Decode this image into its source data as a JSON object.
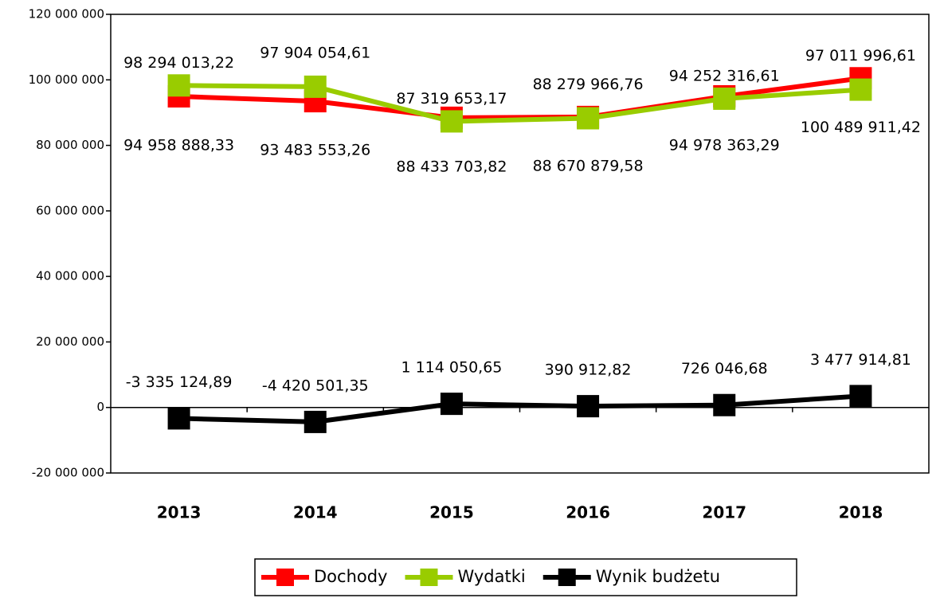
{
  "chart_data": {
    "type": "line",
    "categories": [
      "2013",
      "2014",
      "2015",
      "2016",
      "2017",
      "2018"
    ],
    "series": [
      {
        "name": "Dochody",
        "color": "#ff0000",
        "values": [
          94958888.33,
          93483553.26,
          88433703.82,
          88670879.58,
          94978363.29,
          100489911.42
        ],
        "value_labels": [
          "94 958 888,33",
          "93 483 553,26",
          "88 433 703,82",
          "88 670 879,58",
          "94 978 363,29",
          "100 489 911,42"
        ]
      },
      {
        "name": "Wydatki",
        "color": "#99cc00",
        "values": [
          98294013.22,
          97904054.61,
          87319653.17,
          88279966.76,
          94252316.61,
          97011996.61
        ],
        "value_labels": [
          "98 294 013,22",
          "97 904 054,61",
          "87 319 653,17",
          "88 279 966,76",
          "94 252 316,61",
          "97 011 996,61"
        ]
      },
      {
        "name": "Wynik budżetu",
        "color": "#000000",
        "values": [
          -3335124.89,
          -4420501.35,
          1114050.65,
          390912.82,
          726046.68,
          3477914.81
        ],
        "value_labels": [
          "-3 335 124,89",
          "-4 420 501,35",
          "1 114 050,65",
          "390 912,82",
          "726 046,68",
          "3 477 914,81"
        ]
      }
    ],
    "ylim": [
      -20000000,
      120000000
    ],
    "yticks": [
      {
        "value": -20000000,
        "label": "-20 000 000"
      },
      0,
      {
        "value": 20000000,
        "label": "20 000 000"
      },
      {
        "value": 40000000,
        "label": "40 000 000"
      },
      {
        "value": 60000000,
        "label": "60 000 000"
      },
      {
        "value": 80000000,
        "label": "80 000 000"
      },
      {
        "value": 100000000,
        "label": "100 000 000"
      },
      {
        "value": 120000000,
        "label": "120 000 000"
      }
    ],
    "grid": false,
    "legend": "bottom"
  }
}
